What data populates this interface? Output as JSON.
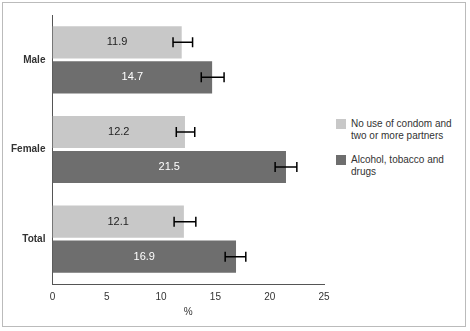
{
  "chart_data": {
    "type": "bar",
    "orientation": "horizontal",
    "categories": [
      "Male",
      "Female",
      "Total"
    ],
    "series": [
      {
        "name": "No use of condom and two or more partners",
        "color": "#c8c8c8",
        "values": [
          11.9,
          12.2,
          12.1
        ],
        "error_low": [
          11.1,
          11.4,
          11.2
        ],
        "error_high": [
          12.9,
          13.1,
          13.2
        ]
      },
      {
        "name": "Alcohol, tobacco and drugs",
        "color": "#6e6e6e",
        "values": [
          14.7,
          21.5,
          16.9
        ],
        "error_low": [
          13.7,
          20.5,
          15.9
        ],
        "error_high": [
          15.8,
          22.5,
          17.8
        ]
      }
    ],
    "x_label": "%",
    "xlim": [
      0,
      25
    ],
    "xticks": [
      0,
      5,
      10,
      15,
      20,
      25
    ],
    "grid": false,
    "legend": "right",
    "data_labels": true
  }
}
